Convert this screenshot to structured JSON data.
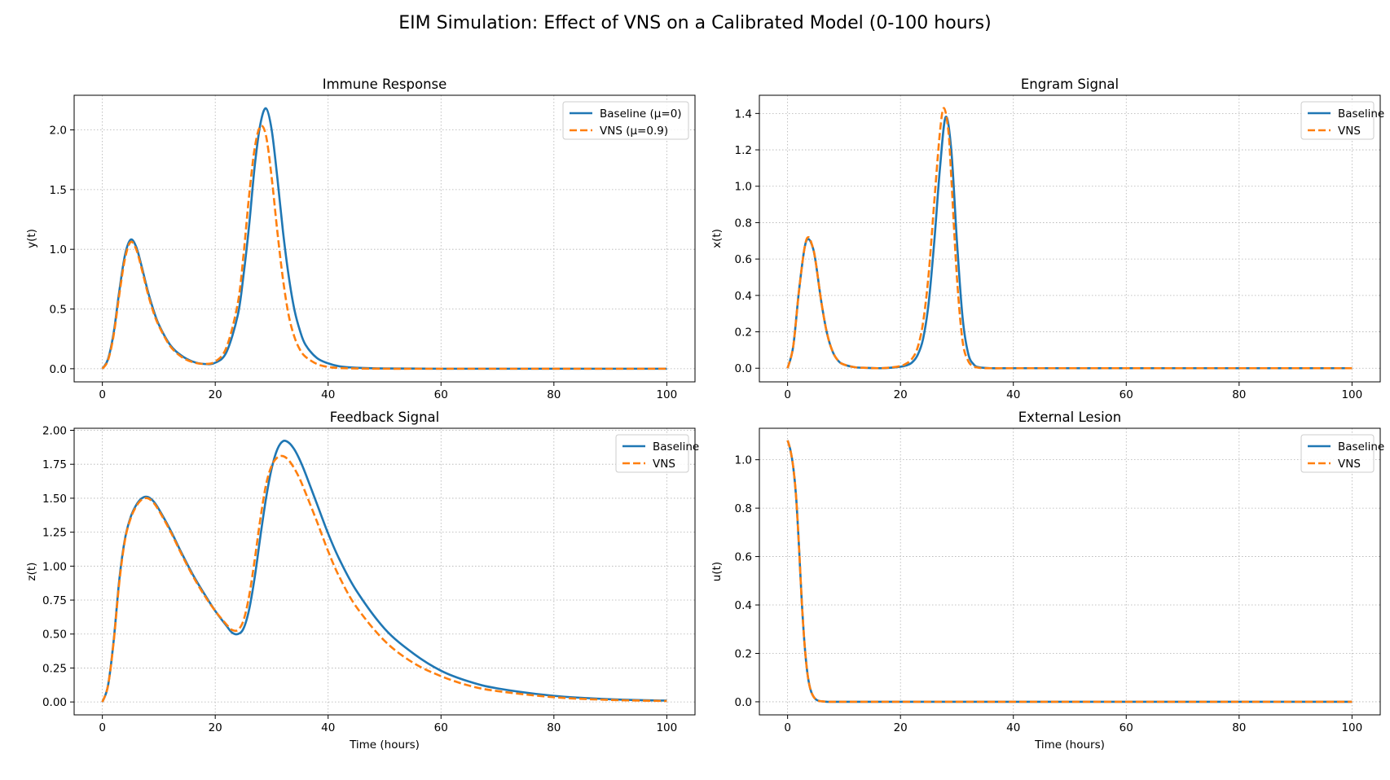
{
  "figure": {
    "title": "EIM Simulation: Effect of VNS on a Calibrated Model (0-100 hours)"
  },
  "colors": {
    "baseline": "#1f77b4",
    "vns": "#ff7f0e",
    "grid": "#b0b0b0",
    "axes": "#000000"
  },
  "chart_data": [
    {
      "id": "immune",
      "type": "line",
      "title": "Immune Response",
      "xlabel": "",
      "ylabel": "y(t)",
      "xlim": [
        -5,
        105
      ],
      "ylim": [
        -0.11,
        2.29
      ],
      "xticks": [
        0,
        20,
        40,
        60,
        80,
        100
      ],
      "yticks": [
        0.0,
        0.5,
        1.0,
        1.5,
        2.0
      ],
      "ytick_labels": [
        "0.0",
        "0.5",
        "1.0",
        "1.5",
        "2.0"
      ],
      "grid": true,
      "legend_position": "upper right",
      "series": [
        {
          "name": "Baseline (μ=0)",
          "style": "solid",
          "x": [
            0,
            1,
            2,
            3,
            4,
            5,
            6,
            7,
            8,
            9,
            10,
            12,
            14,
            16,
            18,
            20,
            22,
            24,
            25,
            26,
            27,
            28,
            29,
            30,
            31,
            32,
            33,
            34,
            35,
            36,
            38,
            40,
            42,
            45,
            50,
            60,
            80,
            100
          ],
          "y": [
            0.0,
            0.08,
            0.3,
            0.65,
            0.95,
            1.08,
            1.02,
            0.85,
            0.66,
            0.5,
            0.37,
            0.2,
            0.11,
            0.06,
            0.04,
            0.05,
            0.14,
            0.45,
            0.78,
            1.2,
            1.7,
            2.05,
            2.18,
            2.0,
            1.6,
            1.15,
            0.78,
            0.5,
            0.32,
            0.2,
            0.09,
            0.045,
            0.02,
            0.008,
            0.002,
            0.0,
            0.0,
            0.0
          ]
        },
        {
          "name": "VNS (μ=0.9)",
          "style": "dashed",
          "x": [
            0,
            1,
            2,
            3,
            4,
            5,
            6,
            7,
            8,
            9,
            10,
            12,
            14,
            16,
            18,
            20,
            22,
            24,
            25,
            26,
            27,
            28,
            29,
            30,
            31,
            32,
            33,
            34,
            35,
            36,
            38,
            40,
            42,
            45,
            50,
            60,
            80,
            100
          ],
          "y": [
            0.0,
            0.07,
            0.28,
            0.62,
            0.92,
            1.06,
            1.0,
            0.83,
            0.64,
            0.48,
            0.36,
            0.19,
            0.1,
            0.055,
            0.04,
            0.06,
            0.18,
            0.55,
            0.95,
            1.45,
            1.85,
            2.03,
            1.95,
            1.6,
            1.15,
            0.75,
            0.45,
            0.27,
            0.16,
            0.1,
            0.04,
            0.015,
            0.006,
            0.002,
            0.0,
            0.0,
            0.0,
            0.0
          ]
        }
      ]
    },
    {
      "id": "engram",
      "type": "line",
      "title": "Engram Signal",
      "xlabel": "",
      "ylabel": "x(t)",
      "xlim": [
        -5,
        105
      ],
      "ylim": [
        -0.075,
        1.5
      ],
      "xticks": [
        0,
        20,
        40,
        60,
        80,
        100
      ],
      "yticks": [
        0.0,
        0.2,
        0.4,
        0.6,
        0.8,
        1.0,
        1.2,
        1.4
      ],
      "ytick_labels": [
        "0.0",
        "0.2",
        "0.4",
        "0.6",
        "0.8",
        "1.0",
        "1.2",
        "1.4"
      ],
      "grid": true,
      "legend_position": "upper right",
      "series": [
        {
          "name": "Baseline",
          "style": "solid",
          "x": [
            0,
            1,
            2,
            3,
            3.7,
            4.5,
            5,
            6,
            7,
            8,
            9,
            10,
            12,
            14,
            16,
            18,
            20,
            21,
            22,
            23,
            24,
            25,
            26,
            27,
            28,
            29,
            30,
            31,
            32,
            33,
            34,
            36,
            40,
            60,
            80,
            100
          ],
          "y": [
            0.0,
            0.12,
            0.42,
            0.66,
            0.71,
            0.66,
            0.58,
            0.36,
            0.19,
            0.09,
            0.04,
            0.02,
            0.005,
            0.002,
            0.0,
            0.002,
            0.008,
            0.015,
            0.03,
            0.07,
            0.16,
            0.36,
            0.7,
            1.1,
            1.38,
            1.2,
            0.7,
            0.28,
            0.08,
            0.02,
            0.005,
            0.0,
            0.0,
            0.0,
            0.0,
            0.0
          ]
        },
        {
          "name": "VNS",
          "style": "dashed",
          "x": [
            0,
            1,
            2,
            3,
            3.7,
            4.5,
            5,
            6,
            7,
            8,
            9,
            10,
            12,
            14,
            16,
            18,
            20,
            21,
            22,
            23,
            24,
            25,
            26,
            27,
            27.7,
            28.5,
            29,
            30,
            31,
            32,
            33,
            34,
            36,
            40,
            60,
            80,
            100
          ],
          "y": [
            0.0,
            0.12,
            0.42,
            0.66,
            0.72,
            0.66,
            0.58,
            0.36,
            0.19,
            0.09,
            0.04,
            0.02,
            0.005,
            0.002,
            0.0,
            0.003,
            0.012,
            0.025,
            0.05,
            0.11,
            0.25,
            0.52,
            0.92,
            1.3,
            1.43,
            1.3,
            1.05,
            0.5,
            0.15,
            0.04,
            0.01,
            0.002,
            0.0,
            0.0,
            0.0,
            0.0,
            0.0
          ]
        }
      ]
    },
    {
      "id": "feedback",
      "type": "line",
      "title": "Feedback Signal",
      "xlabel": "Time (hours)",
      "ylabel": "z(t)",
      "xlim": [
        -5,
        105
      ],
      "ylim": [
        -0.095,
        2.015
      ],
      "xticks": [
        0,
        20,
        40,
        60,
        80,
        100
      ],
      "yticks": [
        0.0,
        0.25,
        0.5,
        0.75,
        1.0,
        1.25,
        1.5,
        1.75,
        2.0
      ],
      "ytick_labels": [
        "0.00",
        "0.25",
        "0.50",
        "0.75",
        "1.00",
        "1.25",
        "1.50",
        "1.75",
        "2.00"
      ],
      "grid": true,
      "legend_position": "upper right",
      "series": [
        {
          "name": "Baseline",
          "style": "solid",
          "x": [
            0,
            1,
            2,
            3,
            4,
            5,
            6,
            7,
            8,
            9,
            10,
            12,
            14,
            16,
            18,
            20,
            22,
            23,
            24,
            25,
            26,
            27,
            28,
            29,
            30,
            31,
            32,
            33,
            34,
            35,
            36,
            38,
            40,
            42,
            45,
            50,
            55,
            60,
            65,
            70,
            80,
            90,
            100
          ],
          "y": [
            0.0,
            0.12,
            0.45,
            0.9,
            1.2,
            1.36,
            1.45,
            1.5,
            1.51,
            1.48,
            1.42,
            1.27,
            1.1,
            0.94,
            0.8,
            0.67,
            0.56,
            0.51,
            0.5,
            0.54,
            0.68,
            0.92,
            1.22,
            1.5,
            1.72,
            1.86,
            1.92,
            1.91,
            1.86,
            1.78,
            1.68,
            1.46,
            1.24,
            1.05,
            0.82,
            0.54,
            0.36,
            0.23,
            0.15,
            0.1,
            0.045,
            0.02,
            0.01
          ]
        },
        {
          "name": "VNS",
          "style": "dashed",
          "x": [
            0,
            1,
            2,
            3,
            4,
            5,
            6,
            7,
            8,
            9,
            10,
            12,
            14,
            16,
            18,
            20,
            22,
            23,
            24,
            25,
            26,
            27,
            28,
            29,
            30,
            31,
            32,
            33,
            34,
            35,
            36,
            38,
            40,
            42,
            45,
            50,
            55,
            60,
            65,
            70,
            80,
            90,
            100
          ],
          "y": [
            0.0,
            0.12,
            0.44,
            0.88,
            1.19,
            1.35,
            1.44,
            1.49,
            1.5,
            1.47,
            1.41,
            1.26,
            1.09,
            0.93,
            0.79,
            0.67,
            0.57,
            0.53,
            0.53,
            0.6,
            0.78,
            1.05,
            1.35,
            1.6,
            1.74,
            1.8,
            1.81,
            1.78,
            1.72,
            1.64,
            1.54,
            1.33,
            1.11,
            0.92,
            0.7,
            0.45,
            0.29,
            0.19,
            0.12,
            0.08,
            0.035,
            0.015,
            0.007
          ]
        }
      ]
    },
    {
      "id": "lesion",
      "type": "line",
      "title": "External Lesion",
      "xlabel": "Time (hours)",
      "ylabel": "u(t)",
      "xlim": [
        -5,
        105
      ],
      "ylim": [
        -0.054,
        1.13
      ],
      "xticks": [
        0,
        20,
        40,
        60,
        80,
        100
      ],
      "yticks": [
        0.0,
        0.2,
        0.4,
        0.6,
        0.8,
        1.0
      ],
      "ytick_labels": [
        "0.0",
        "0.2",
        "0.4",
        "0.6",
        "0.8",
        "1.0"
      ],
      "grid": true,
      "legend_position": "upper right",
      "series": [
        {
          "name": "Baseline",
          "style": "solid",
          "x": [
            0,
            0.5,
            1,
            1.5,
            2,
            2.5,
            3,
            3.5,
            4,
            4.5,
            5,
            5.5,
            6,
            7,
            8,
            10,
            20,
            40,
            60,
            80,
            100
          ],
          "y": [
            1.08,
            1.04,
            0.97,
            0.85,
            0.65,
            0.42,
            0.24,
            0.12,
            0.055,
            0.025,
            0.01,
            0.004,
            0.002,
            0.0,
            0.0,
            0.0,
            0.0,
            0.0,
            0.0,
            0.0,
            0.0
          ]
        },
        {
          "name": "VNS",
          "style": "dashed",
          "x": [
            0,
            0.5,
            1,
            1.5,
            2,
            2.5,
            3,
            3.5,
            4,
            4.5,
            5,
            5.5,
            6,
            7,
            8,
            10,
            20,
            40,
            60,
            80,
            100
          ],
          "y": [
            1.08,
            1.04,
            0.97,
            0.85,
            0.65,
            0.42,
            0.24,
            0.12,
            0.055,
            0.025,
            0.01,
            0.004,
            0.002,
            0.0,
            0.0,
            0.0,
            0.0,
            0.0,
            0.0,
            0.0,
            0.0
          ]
        }
      ]
    }
  ]
}
